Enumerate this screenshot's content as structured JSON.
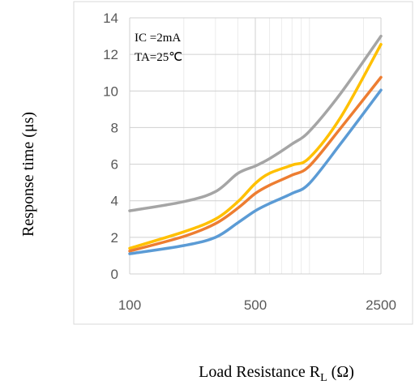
{
  "chart_data": {
    "type": "line",
    "title": "",
    "xlabel_main": "Load Resistance R",
    "xlabel_sub": "L",
    "xlabel_unit": "(Ω)",
    "ylabel": "Response time (μs)",
    "x_scale": "log",
    "xlim": [
      100,
      2500
    ],
    "ylim": [
      0,
      14
    ],
    "x_ticks": [
      100,
      500,
      2500
    ],
    "x_tick_labels": [
      "100",
      "500",
      "2500"
    ],
    "y_ticks": [
      0,
      2,
      4,
      6,
      8,
      10,
      12,
      14
    ],
    "y_tick_labels": [
      "0",
      "2",
      "4",
      "6",
      "8",
      "10",
      "12",
      "14"
    ],
    "grid": true,
    "legend": "none",
    "annotations": [
      "IC =2mA",
      "TA=25℃"
    ],
    "series": [
      {
        "color": "#a5a5a5",
        "x": [
          100,
          200,
          300,
          400,
          500,
          600,
          800,
          1000,
          1500,
          2500
        ],
        "y": [
          3.45,
          3.95,
          4.5,
          5.5,
          5.9,
          6.3,
          7.1,
          7.8,
          9.9,
          13.0
        ]
      },
      {
        "color": "#ffc000",
        "x": [
          100,
          200,
          300,
          400,
          500,
          600,
          800,
          1000,
          1500,
          2500
        ],
        "y": [
          1.4,
          2.3,
          3.0,
          3.95,
          4.95,
          5.5,
          5.95,
          6.35,
          8.6,
          12.55
        ]
      },
      {
        "color": "#ed7d31",
        "x": [
          100,
          200,
          300,
          400,
          500,
          600,
          800,
          1000,
          1500,
          2500
        ],
        "y": [
          1.25,
          2.05,
          2.75,
          3.6,
          4.4,
          4.85,
          5.4,
          5.9,
          8.0,
          10.75
        ]
      },
      {
        "color": "#5b9bd5",
        "x": [
          100,
          200,
          300,
          400,
          500,
          600,
          800,
          1000,
          1500,
          2500
        ],
        "y": [
          1.1,
          1.55,
          2.0,
          2.8,
          3.45,
          3.85,
          4.4,
          4.95,
          7.15,
          10.05
        ]
      }
    ]
  }
}
